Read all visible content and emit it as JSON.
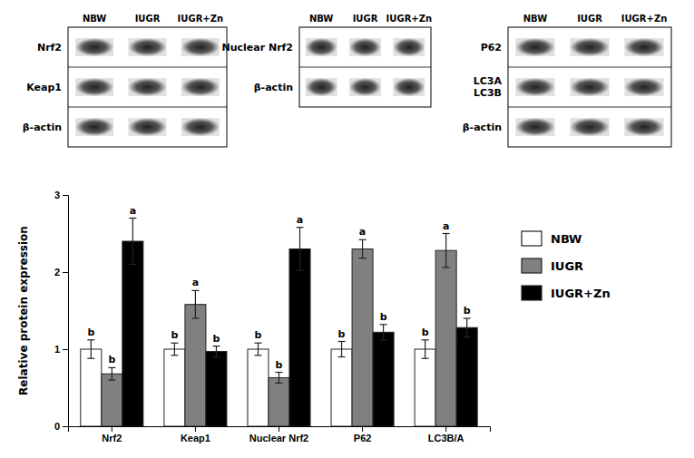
{
  "chart_data": {
    "type": "bar",
    "categories": [
      "Nrf2",
      "Keap1",
      "Nuclear Nrf2",
      "P62",
      "LC3B/A"
    ],
    "series": [
      {
        "name": "NBW",
        "color": "#ffffff",
        "values": [
          1.0,
          1.0,
          1.0,
          1.0,
          1.0
        ],
        "errors": [
          0.12,
          0.08,
          0.08,
          0.1,
          0.12
        ],
        "labels": [
          "b",
          "b",
          "b",
          "b",
          "b"
        ]
      },
      {
        "name": "IUGR",
        "color": "#808080",
        "values": [
          0.68,
          1.58,
          0.63,
          2.3,
          2.28
        ],
        "errors": [
          0.08,
          0.18,
          0.07,
          0.12,
          0.22
        ],
        "labels": [
          "b",
          "a",
          "b",
          "a",
          "a"
        ]
      },
      {
        "name": "IUGR+Zn",
        "color": "#000000",
        "values": [
          2.4,
          0.97,
          2.3,
          1.22,
          1.28
        ],
        "errors": [
          0.3,
          0.07,
          0.28,
          0.1,
          0.12
        ],
        "labels": [
          "a",
          "b",
          "a",
          "b",
          "b"
        ]
      }
    ],
    "ylabel": "Relative protein expression",
    "ylim": [
      0,
      3
    ],
    "yticks": [
      0,
      1,
      2,
      3
    ],
    "legend": "right",
    "annotations": [
      {
        "columns": [
          "NBW",
          "IUGR",
          "IUGR+Zn"
        ],
        "rows": [
          "Nrf2",
          "Keap1",
          "β-actin"
        ]
      },
      {
        "columns": [
          "NBW",
          "IUGR",
          "IUGR+Zn"
        ],
        "rows": [
          "Nuclear Nrf2",
          "β-actin"
        ]
      },
      {
        "columns": [
          "NBW",
          "IUGR",
          "IUGR+Zn"
        ],
        "rows": [
          "P62",
          [
            "LC3A",
            "LC3B"
          ],
          "β-actin"
        ]
      }
    ]
  }
}
